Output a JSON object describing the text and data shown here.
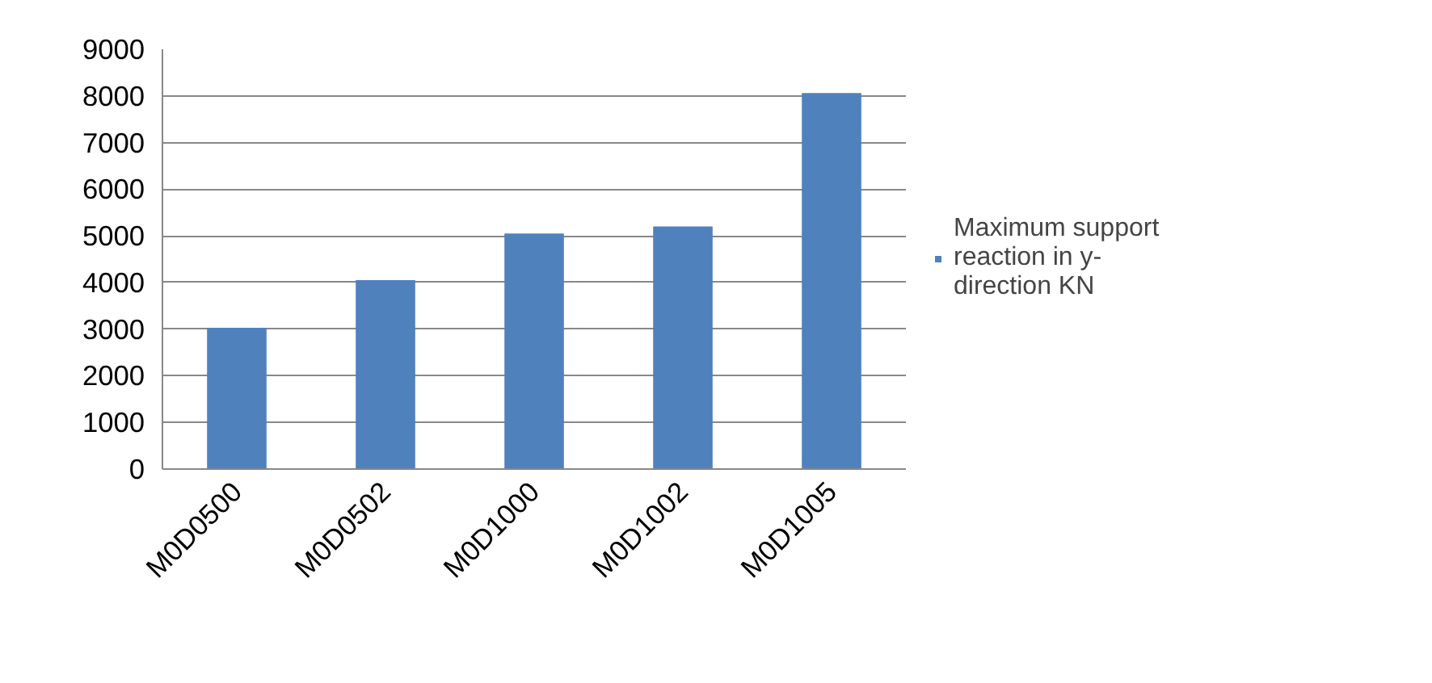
{
  "chart_data": {
    "type": "bar",
    "categories": [
      "M0D0500",
      "M0D0502",
      "M0D1000",
      "M0D1002",
      "M0D1005"
    ],
    "series": [
      {
        "name": "Maximum support reaction in y- direction KN",
        "color": "#4f81bd",
        "values": [
          3030,
          4050,
          5050,
          5200,
          8060
        ]
      }
    ],
    "ylim": [
      0,
      9000
    ],
    "yticks": [
      0,
      1000,
      2000,
      3000,
      4000,
      5000,
      6000,
      7000,
      8000,
      9000
    ],
    "grid": "y",
    "legend": "right"
  }
}
